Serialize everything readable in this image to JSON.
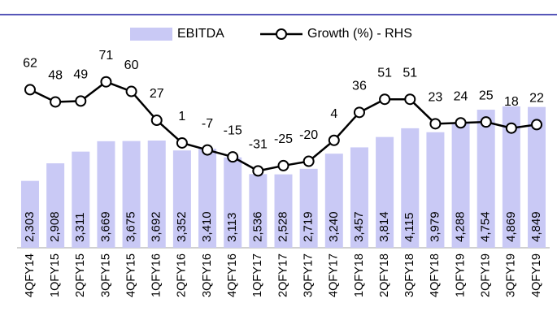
{
  "chart_data": {
    "type": "combo",
    "categories": [
      "4QFY14",
      "1QFY15",
      "2QFY15",
      "3QFY15",
      "4QFY15",
      "1QFY16",
      "2QFY16",
      "3QFY16",
      "4QFY16",
      "1QFY17",
      "2QFY17",
      "3QFY17",
      "4QFY17",
      "1QFY18",
      "2QFY18",
      "3QFY18",
      "4QFY18",
      "1QFY19",
      "2QFY19",
      "3QFY19",
      "4QFY19"
    ],
    "series": [
      {
        "name": "EBITDA",
        "type": "bar",
        "color": "#c9c9f5",
        "values": [
          2303,
          2908,
          3311,
          3669,
          3675,
          3692,
          3352,
          3410,
          3113,
          2536,
          2528,
          2719,
          3240,
          3457,
          3814,
          4115,
          3979,
          4288,
          4754,
          4869,
          4849
        ],
        "value_labels": [
          "2,303",
          "2,908",
          "3,311",
          "3,669",
          "3,675",
          "3,692",
          "3,352",
          "3,410",
          "3,113",
          "2,536",
          "2,528",
          "2,719",
          "3,240",
          "3,457",
          "3,814",
          "4,115",
          "3,979",
          "4,288",
          "4,754",
          "4,869",
          "4,849"
        ]
      },
      {
        "name": "Growth (%) - RHS",
        "type": "line",
        "axis": "y2",
        "color": "#000000",
        "values": [
          62,
          48,
          49,
          71,
          60,
          27,
          1,
          -7,
          -15,
          -31,
          -25,
          -20,
          4,
          36,
          51,
          51,
          23,
          24,
          25,
          18,
          22
        ]
      }
    ],
    "ylim": [
      0,
      8000
    ],
    "y2lim": [
      -119,
      147
    ]
  }
}
